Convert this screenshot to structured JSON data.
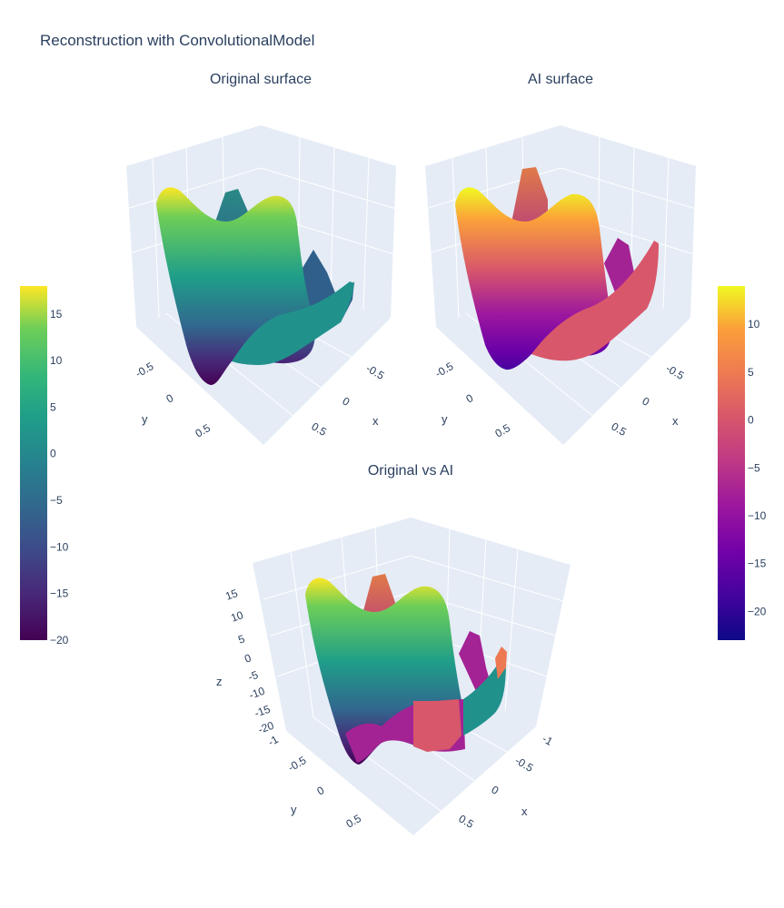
{
  "chart_data": {
    "title": "Reconstruction with ConvolutionalModel",
    "type": "surface3d",
    "panels": [
      {
        "title": "Original surface",
        "colorscale": "viridis",
        "x_ticks": [
          "-0.5",
          "0",
          "0.5"
        ],
        "y_ticks": [
          "-0.5",
          "0",
          "0.5"
        ],
        "x_label": "x",
        "y_label": "y"
      },
      {
        "title": "AI surface",
        "colorscale": "plasma",
        "x_ticks": [
          "-0.5",
          "0",
          "0.5"
        ],
        "y_ticks": [
          "-0.5",
          "0",
          "0.5"
        ],
        "x_label": "x",
        "y_label": "y"
      },
      {
        "title": "Original vs AI",
        "colorscale": "viridis+plasma",
        "x_ticks": [
          "-1",
          "-0.5",
          "0",
          "0.5"
        ],
        "y_ticks": [
          "-1",
          "-0.5",
          "0",
          "0.5"
        ],
        "z_ticks": [
          "15",
          "10",
          "5",
          "0",
          "-5",
          "-10",
          "-15",
          "-20"
        ],
        "x_label": "x",
        "y_label": "y",
        "z_label": "z"
      }
    ],
    "colorbars": [
      {
        "name": "viridis",
        "range": [
          -20,
          18
        ],
        "ticks": [
          15,
          10,
          5,
          0,
          -5,
          -10,
          -15,
          -20
        ]
      },
      {
        "name": "plasma",
        "range": [
          -23,
          14
        ],
        "ticks": [
          10,
          5,
          0,
          -5,
          -10,
          -15,
          -20
        ]
      }
    ]
  },
  "colors": {
    "scene_bg": "#e5ecf6",
    "grid": "#ffffff",
    "text": "#2a3f5f"
  }
}
